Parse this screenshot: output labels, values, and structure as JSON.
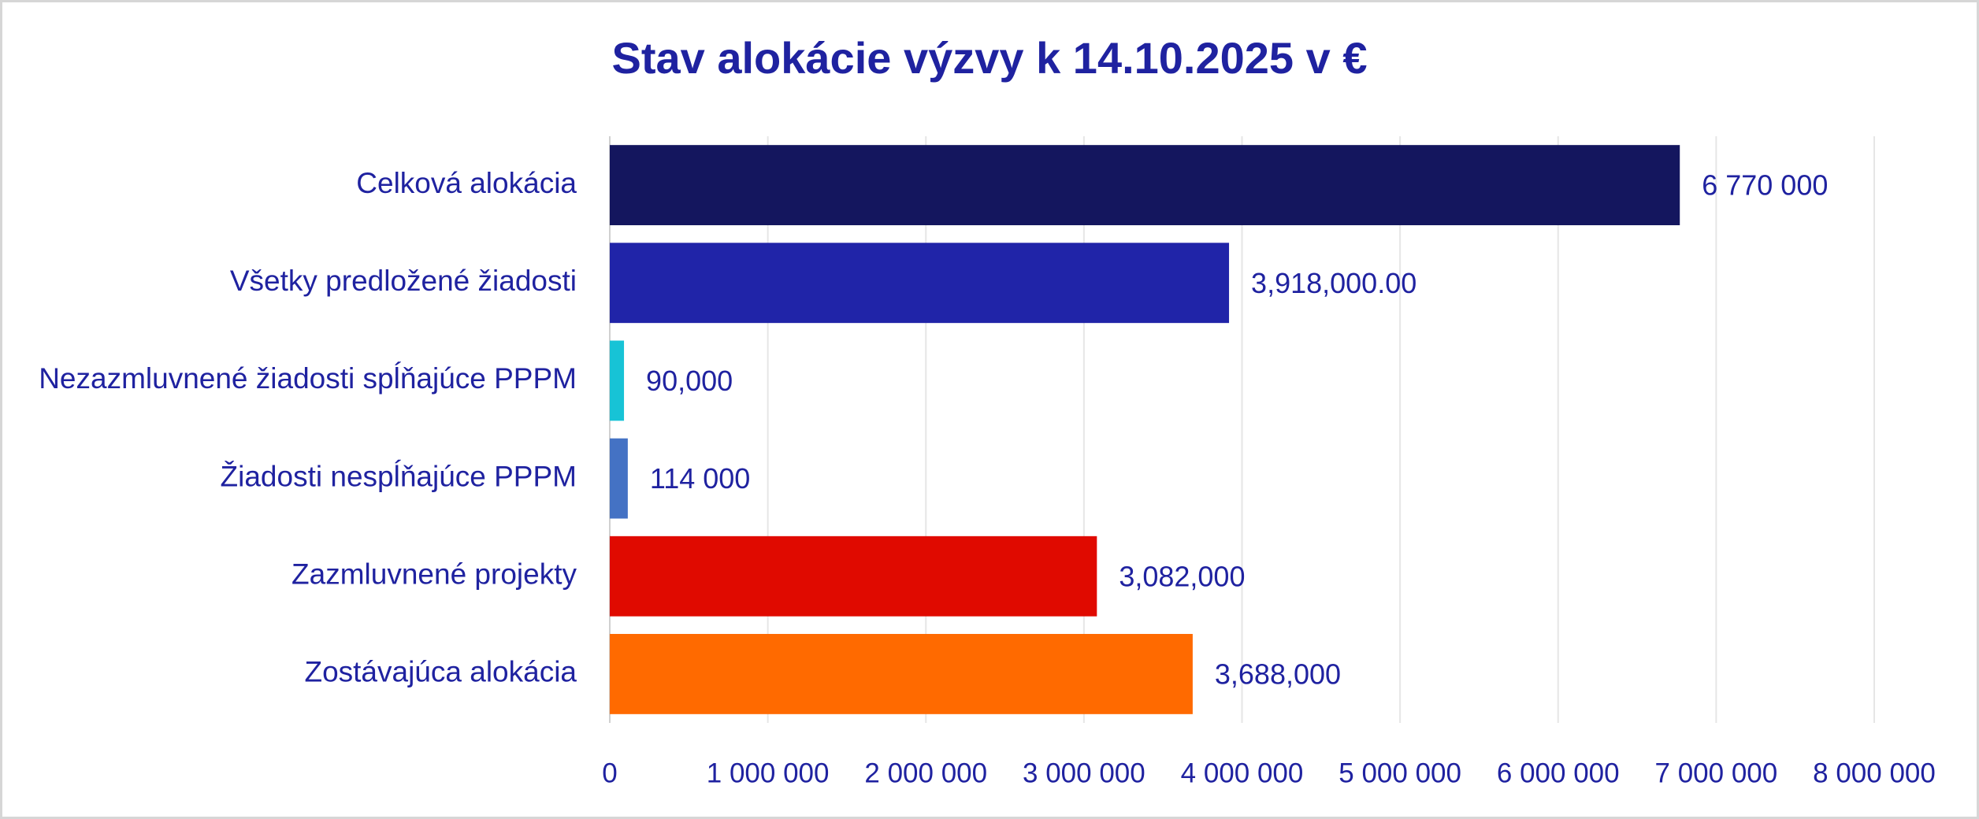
{
  "chart_data": {
    "type": "bar",
    "orientation": "horizontal",
    "title": "Stav alokácie výzvy k 14.10.2025 v €",
    "categories": [
      "Celková alokácia",
      "Všetky predložené žiadosti",
      "Nezazmluvnené žiadosti spĺňajúce PPPM",
      "Žiadosti nespĺňajúce PPPM",
      "Zazmluvnené projekty",
      "Zostávajúca alokácia"
    ],
    "values": [
      6770000,
      3918000,
      90000,
      114000,
      3082000,
      3688000
    ],
    "value_labels": [
      "6 770 000",
      "3,918,000.00",
      "90,000",
      "114 000",
      "3,082,000",
      "3,688,000"
    ],
    "colors": [
      "#14165e",
      "#2024a8",
      "#17c3d6",
      "#4472c4",
      "#e00a00",
      "#ff6a00"
    ],
    "xlim": [
      0,
      8000000
    ],
    "xticks": [
      0,
      {
        "value": 1000000,
        "label": "1 000 000"
      },
      {
        "value": 2000000,
        "label": "2 000 000"
      },
      {
        "value": 3000000,
        "label": "3 000 000"
      },
      {
        "value": 4000000,
        "label": "4 000 000"
      },
      {
        "value": 5000000,
        "label": "5 000 000"
      },
      {
        "value": 6000000,
        "label": "6 000 000"
      },
      {
        "value": 7000000,
        "label": "7 000 000"
      },
      {
        "value": 8000000,
        "label": "8 000 000"
      }
    ],
    "grid": true
  }
}
